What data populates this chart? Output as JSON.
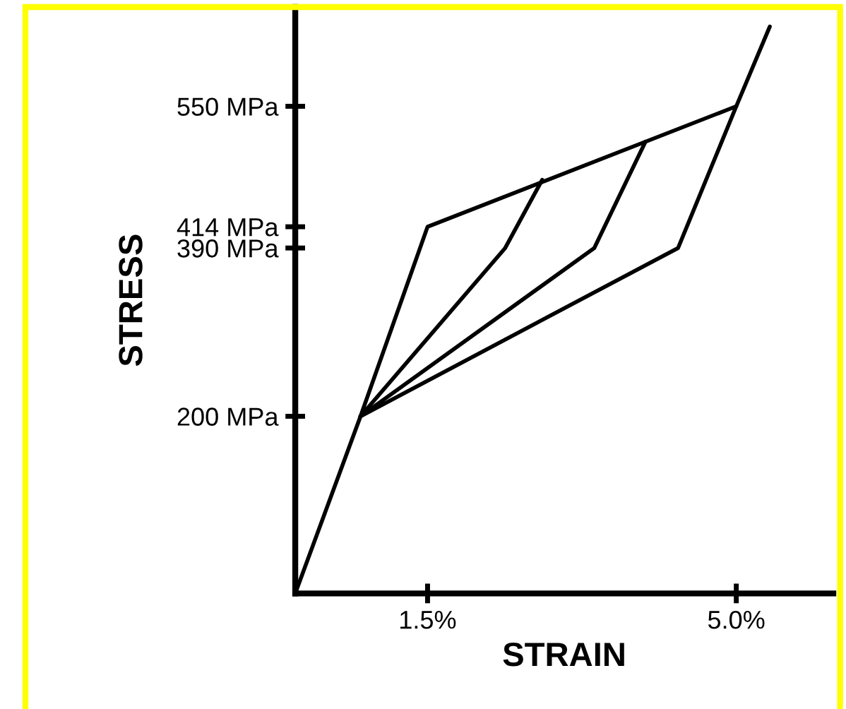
{
  "chart_data": {
    "type": "line",
    "xlabel": "STRAIN",
    "ylabel": "STRESS",
    "series": [
      {
        "color": "#000000",
        "x": [
          0,
          0.74,
          1.5,
          5.0
        ],
        "values": [
          0,
          200,
          414,
          550
        ]
      },
      {
        "color": "#000000",
        "x": [
          0.74,
          4.34,
          5.0,
          5.38
        ],
        "values": [
          200,
          390,
          550,
          640
        ]
      },
      {
        "color": "#000000",
        "x": [
          0.74,
          2.38,
          2.8
        ],
        "values": [
          200,
          390,
          467
        ]
      },
      {
        "color": "#000000",
        "x": [
          0.74,
          3.39,
          3.97
        ],
        "values": [
          200,
          390,
          510
        ]
      }
    ],
    "xlim": [
      0,
      6.1
    ],
    "ylim": [
      0,
      662
    ],
    "xticks": [
      {
        "value": 1.5,
        "label": "1.5%"
      },
      {
        "value": 5.0,
        "label": "5.0%"
      }
    ],
    "yticks": [
      {
        "value": 200,
        "label": "200 MPa"
      },
      {
        "value": 390,
        "label": "390 MPa"
      },
      {
        "value": 414,
        "label": "414 MPa"
      },
      {
        "value": 550,
        "label": "550 MPa"
      }
    ],
    "grid": false,
    "legend": false,
    "marker": "none",
    "line_style": "solid"
  }
}
